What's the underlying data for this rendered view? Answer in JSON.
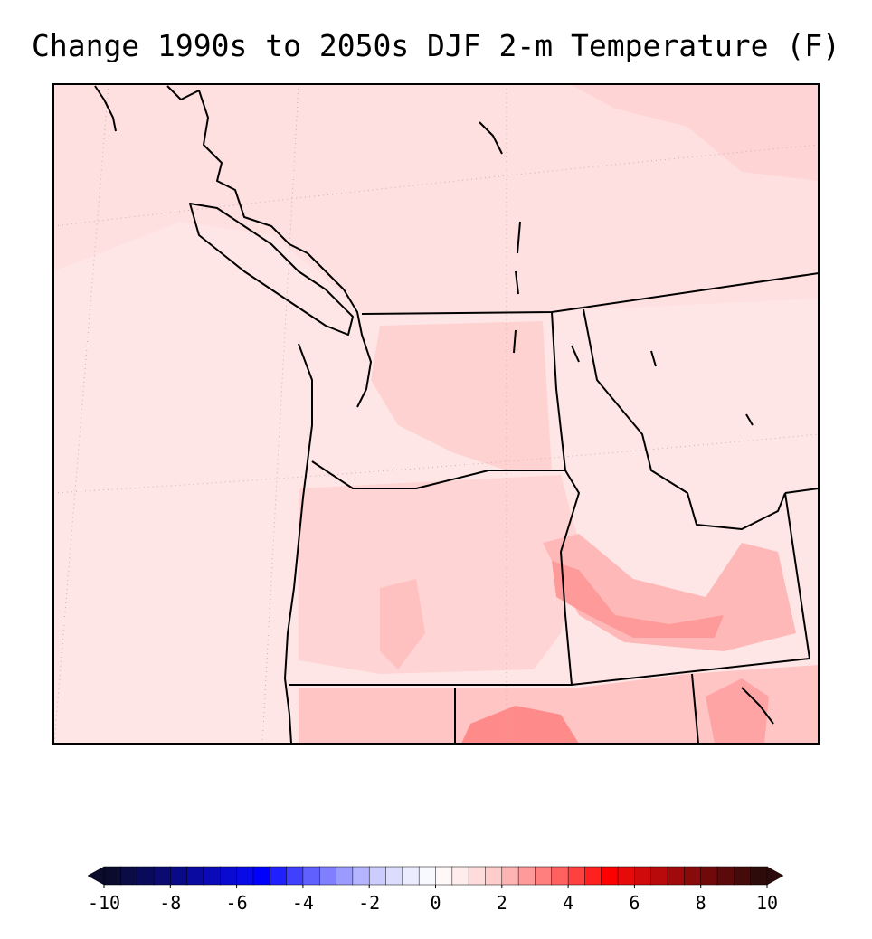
{
  "title": "Change 1990s to 2050s DJF 2-m Temperature (F)",
  "colorbar": {
    "lim": [
      -10,
      10
    ],
    "ticks": [
      -10,
      -8,
      -6,
      -4,
      -2,
      0,
      2,
      4,
      6,
      8,
      10
    ],
    "colors": [
      "#0b0b2e",
      "#0b0b45",
      "#0a0a5a",
      "#0a0a70",
      "#0a0a88",
      "#0a0aa0",
      "#0a0ab8",
      "#0a0ad0",
      "#0a0ae6",
      "#0000ff",
      "#2020ff",
      "#4040ff",
      "#6060ff",
      "#7f7fff",
      "#9a9aff",
      "#b4b4ff",
      "#ccccff",
      "#dcdcff",
      "#ececff",
      "#f8f8ff",
      "#fff8f8",
      "#ffecec",
      "#ffdcdc",
      "#ffcccc",
      "#ffb4b4",
      "#ff9a9a",
      "#ff7f7f",
      "#ff6060",
      "#ff4040",
      "#ff2020",
      "#ff0000",
      "#e60a0a",
      "#d00a0a",
      "#b80a0a",
      "#a00a0a",
      "#880a0a",
      "#700a0a",
      "#5a0a0a",
      "#450b0b",
      "#2e0b0b"
    ]
  }
}
